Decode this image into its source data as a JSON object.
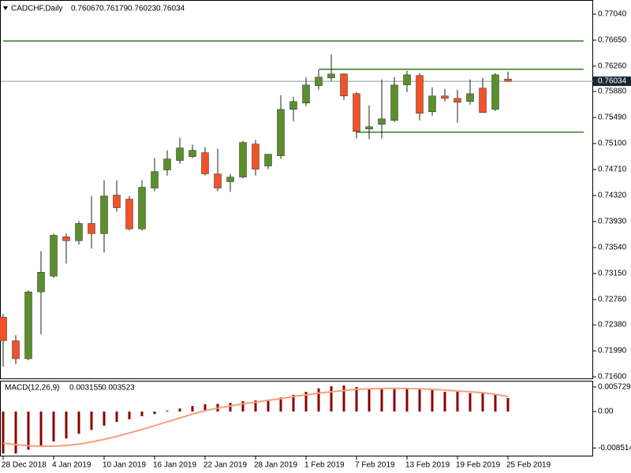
{
  "chart_data": [
    {
      "type": "candlestick",
      "title": "CADCHF,Daily",
      "categories": [
        "28 Dec 2018",
        null,
        null,
        null,
        "4 Jan 2019",
        null,
        null,
        null,
        "10 Jan 2019",
        null,
        null,
        null,
        "16 Jan 2019",
        null,
        null,
        null,
        "22 Jan 2019",
        null,
        null,
        null,
        "28 Jan 2019",
        null,
        null,
        null,
        "1 Feb 2019",
        null,
        null,
        null,
        "7 Feb 2019",
        null,
        null,
        null,
        "13 Feb 2019",
        null,
        null,
        null,
        "19 Feb 2019",
        null,
        null,
        null,
        "25 Feb 2019"
      ],
      "open": [
        0.72497,
        0.72143,
        0.71872,
        0.72875,
        0.73111,
        0.73701,
        0.73642,
        0.73901,
        0.73748,
        0.74326,
        0.74267,
        0.73819,
        0.74432,
        0.74704,
        0.74845,
        0.74904,
        0.74963,
        0.74645,
        0.74527,
        0.74597,
        0.75093,
        0.74763,
        0.74916,
        0.75612,
        0.75707,
        0.75966,
        0.76084,
        0.76143,
        0.75848,
        0.75317,
        0.75388,
        0.75447,
        0.75978,
        0.7612,
        0.75577,
        0.75813,
        0.75777,
        0.7573,
        0.75931,
        0.75612,
        0.76067
      ],
      "high": [
        0.72544,
        0.72226,
        0.72898,
        0.73488,
        0.73748,
        0.73748,
        0.73937,
        0.74314,
        0.7455,
        0.7455,
        0.74314,
        0.7455,
        0.74881,
        0.74999,
        0.75187,
        0.75081,
        0.75046,
        0.75022,
        0.74645,
        0.7514,
        0.75152,
        0.7494,
        0.75825,
        0.75801,
        0.76096,
        0.76202,
        0.76438,
        0.76155,
        0.75872,
        0.75671,
        0.76061,
        0.76096,
        0.7619,
        0.76155,
        0.75943,
        0.75919,
        0.75907,
        0.76061,
        0.76084,
        0.76155,
        0.76179
      ],
      "low": [
        0.71754,
        0.71789,
        0.71848,
        0.72237,
        0.73087,
        0.73299,
        0.73583,
        0.73524,
        0.73465,
        0.74078,
        0.73795,
        0.73795,
        0.74385,
        0.74621,
        0.74798,
        0.74881,
        0.74621,
        0.74385,
        0.74373,
        0.74574,
        0.74621,
        0.74715,
        0.74869,
        0.75435,
        0.75659,
        0.75907,
        0.76037,
        0.75754,
        0.75176,
        0.75164,
        0.75176,
        0.75423,
        0.75872,
        0.75447,
        0.75518,
        0.7573,
        0.75412,
        0.75683,
        0.75565,
        0.75589,
        0.76023
      ],
      "close": [
        0.72143,
        0.71872,
        0.72875,
        0.7317,
        0.73724,
        0.73642,
        0.73901,
        0.73748,
        0.74314,
        0.74137,
        0.73819,
        0.74444,
        0.7468,
        0.74869,
        0.75034,
        0.74999,
        0.74645,
        0.74432,
        0.74597,
        0.75117,
        0.74715,
        0.7494,
        0.75612,
        0.7573,
        0.75978,
        0.76096,
        0.76143,
        0.75813,
        0.75282,
        0.75353,
        0.75471,
        0.75978,
        0.76131,
        0.75553,
        0.75813,
        0.75777,
        0.75718,
        0.75848,
        0.75565,
        0.76131,
        0.76034
      ],
      "up_color": "#5a8f2c",
      "down_color": "#f0522a",
      "wick_color": "#222222",
      "ylim": [
        0.71577,
        0.77241
      ],
      "yticks": [
        {
          "value": 0.7704,
          "label": "0.77040"
        },
        {
          "value": 0.7665,
          "label": "0.76650"
        },
        {
          "value": 0.7626,
          "label": "0.76260"
        },
        {
          "value": 0.7588,
          "label": "0.75880"
        },
        {
          "value": 0.7549,
          "label": "0.75490"
        },
        {
          "value": 0.751,
          "label": "0.75100"
        },
        {
          "value": 0.7471,
          "label": "0.74710"
        },
        {
          "value": 0.7432,
          "label": "0.74320"
        },
        {
          "value": 0.7393,
          "label": "0.73930"
        },
        {
          "value": 0.7354,
          "label": "0.73540"
        },
        {
          "value": 0.7315,
          "label": "0.73150"
        },
        {
          "value": 0.7276,
          "label": "0.72760"
        },
        {
          "value": 0.7238,
          "label": "0.72380"
        },
        {
          "value": 0.7199,
          "label": "0.71990"
        },
        {
          "value": 0.716,
          "label": "0.71600"
        }
      ],
      "levels": [
        {
          "value": 0.76638,
          "start": 0
        },
        {
          "value": 0.76214,
          "start": 25
        },
        {
          "value": 0.7527,
          "start": 28
        }
      ],
      "level_color": "#2f7d1e",
      "price_line_color": "#8a9aa8",
      "price_box_color": "#1c2733"
    },
    {
      "type": "macd",
      "title": "MACD(12,26,9)",
      "series": [
        {
          "color": "#8b0000",
          "values": [
            -0.0098,
            -0.0098,
            -0.0089,
            -0.0081,
            -0.007,
            -0.0063,
            -0.0052,
            -0.0043,
            -0.0033,
            -0.0024,
            -0.0018,
            -0.0011,
            -0.0006,
            0.0002,
            0.0007,
            0.0013,
            0.0017,
            0.0018,
            0.002,
            0.0024,
            0.0026,
            0.0028,
            0.0033,
            0.0039,
            0.0046,
            0.0054,
            0.0059,
            0.0061,
            0.0057,
            0.0054,
            0.0054,
            0.0054,
            0.0055,
            0.0054,
            0.005,
            0.0046,
            0.0046,
            0.0043,
            0.0043,
            0.0041,
            0.003155
          ]
        },
        {
          "color": "#f4a07a",
          "values": [
            -0.0074,
            -0.0077,
            -0.008,
            -0.0081,
            -0.0081,
            -0.0079,
            -0.0076,
            -0.0071,
            -0.0065,
            -0.0058,
            -0.005,
            -0.0042,
            -0.0033,
            -0.0024,
            -0.0015,
            -0.0006,
            0.0002,
            0.0008,
            0.0013,
            0.0018,
            0.0022,
            0.0026,
            0.003,
            0.0035,
            0.0039,
            0.0043,
            0.0046,
            0.0049,
            0.0052,
            0.0053,
            0.0054,
            0.0054,
            0.0054,
            0.0053,
            0.0052,
            0.005,
            0.0048,
            0.0046,
            0.0044,
            0.004,
            0.003523
          ]
        }
      ],
      "ylim": [
        -0.0103,
        0.007
      ],
      "yticks": [
        0.005729,
        {
          "value": 0,
          "label": "0.00"
        },
        -0.008514
      ]
    }
  ]
}
